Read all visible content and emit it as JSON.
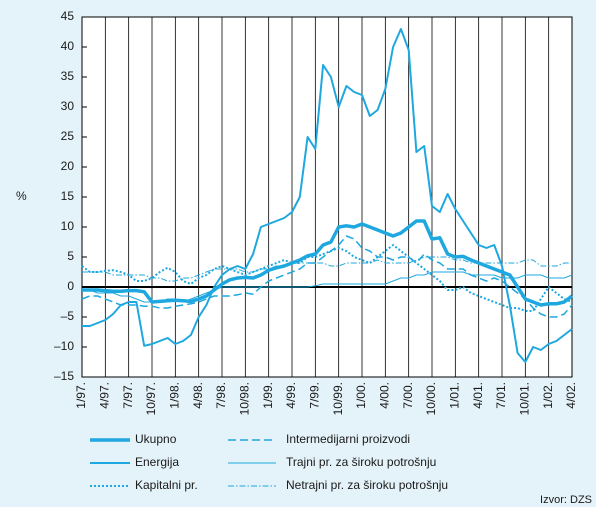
{
  "chart_data": {
    "type": "line",
    "y_label": "%",
    "source": "Izvor: DZS",
    "categories": [
      "1/97.",
      null,
      null,
      "4/97.",
      null,
      null,
      "7/97.",
      null,
      null,
      "10/97.",
      null,
      null,
      "1/98.",
      null,
      null,
      "4/98.",
      null,
      null,
      "7/98.",
      null,
      null,
      "10/98.",
      null,
      null,
      "1/99.",
      null,
      null,
      "4/99.",
      null,
      null,
      "7/99.",
      null,
      null,
      "10/99.",
      null,
      null,
      "1/00.",
      null,
      null,
      "4/00.",
      null,
      null,
      "7/00.",
      null,
      null,
      "10/00.",
      null,
      null,
      "1/01.",
      null,
      null,
      "4/01.",
      null,
      null,
      "7/01.",
      null,
      null,
      "10/01.",
      null,
      null,
      "1/02.",
      null,
      null,
      "4/02."
    ],
    "ylim": [
      -15,
      45
    ],
    "yticks": [
      {
        "value": -15,
        "label": "–15"
      },
      {
        "value": -10,
        "label": "–10"
      },
      {
        "value": -5,
        "label": "–5"
      },
      0,
      5,
      10,
      15,
      20,
      25,
      30,
      35,
      40,
      45
    ],
    "series": [
      {
        "name": "Ukupno",
        "color": "#1ea8df",
        "line_style": "solid",
        "line_width": 3.5,
        "values": [
          -0.5,
          -0.5,
          -0.5,
          -0.6,
          -0.7,
          -0.7,
          -0.6,
          -0.6,
          -0.8,
          -2.5,
          -2.4,
          -2.3,
          -2.2,
          -2.3,
          -2.4,
          -2,
          -1.5,
          -0.5,
          0.5,
          1.2,
          1.5,
          1.6,
          1.5,
          2,
          2.8,
          3.2,
          3.5,
          4,
          4.5,
          5.2,
          5.5,
          7,
          7.5,
          10,
          10.2,
          10,
          10.5,
          10,
          9.5,
          9,
          8.5,
          9,
          10,
          11,
          11,
          8,
          8.2,
          5.5,
          5,
          5.1,
          4.5,
          4,
          3.5,
          3,
          2.5,
          2,
          0,
          -2,
          -2.5,
          -3,
          -2.8,
          -2.8,
          -2.5,
          -1.5
        ]
      },
      {
        "name": "Energija",
        "color": "#1ea8df",
        "line_style": "solid",
        "line_width": 2,
        "values": [
          -6.5,
          -6.5,
          -6,
          -5.5,
          -4.5,
          -3,
          -2.5,
          -2.5,
          -9.8,
          -9.5,
          -9,
          -8.5,
          -9.5,
          -9,
          -8,
          -5,
          -3,
          0,
          2,
          3,
          3.5,
          3,
          5.5,
          10,
          10.5,
          11,
          11.5,
          12.5,
          15,
          25,
          23,
          37,
          35,
          30,
          33.5,
          32.5,
          32,
          28.5,
          29.5,
          33,
          40,
          43,
          39.5,
          22.5,
          23.5,
          13.5,
          12.5,
          15.5,
          13,
          11,
          9,
          7,
          6.5,
          7,
          3.5,
          -3,
          -11,
          -12.5,
          -10,
          -10.5,
          -9.5,
          -9,
          -8,
          -7
        ]
      },
      {
        "name": "Kapitalni pr.",
        "color": "#1ea8df",
        "line_style": "dotted",
        "line_width": 2,
        "values": [
          3.5,
          2.5,
          2.5,
          2.7,
          2.8,
          2.5,
          2,
          1,
          1,
          1.5,
          2.5,
          3.2,
          2.5,
          1,
          0.5,
          1.5,
          2,
          3,
          3.5,
          3,
          2.5,
          2,
          2.5,
          3,
          3.5,
          4,
          4.5,
          4,
          4,
          5,
          5,
          5.5,
          6,
          6.5,
          6,
          5,
          4.5,
          4,
          5,
          6,
          7,
          6,
          5,
          4,
          3,
          2,
          1,
          -0.5,
          -0.5,
          0,
          -1,
          -1.5,
          -2,
          -2.5,
          -3,
          -3.5,
          -3.5,
          -4,
          -4,
          -2,
          0,
          -1,
          -2,
          -2.5
        ]
      },
      {
        "name": "Intermedijarni proizvodi",
        "color": "#1ea8df",
        "line_style": "dashed",
        "line_width": 1.5,
        "values": [
          -2,
          -1.5,
          -1.5,
          -2,
          -2.5,
          -3,
          -3,
          -3,
          -3.2,
          -3.2,
          -3.5,
          -3.5,
          -3.2,
          -3,
          -2.8,
          -2.5,
          -2,
          -1.5,
          -1.5,
          -1.5,
          -1.3,
          -1,
          -1.2,
          0,
          1,
          1.5,
          2,
          2.5,
          3,
          4,
          4,
          5,
          6,
          7,
          8.5,
          8,
          6.5,
          6,
          5,
          5,
          4.5,
          5,
          5,
          4,
          5.5,
          4.5,
          4,
          3,
          3,
          3,
          2,
          1.5,
          1,
          1.5,
          1,
          0,
          -1,
          -2,
          -3.5,
          -4.5,
          -5,
          -5,
          -4.5,
          -3
        ]
      },
      {
        "name": "Trajni pr. za široku potrošnju",
        "color": "#1ea8df",
        "line_style": "solid",
        "line_width": 1,
        "values": [
          -0.5,
          -0.5,
          -1,
          -1,
          -1,
          -1.5,
          -1.5,
          -2,
          -2.5,
          -2.5,
          -2.5,
          -2,
          -2,
          -2.5,
          -2,
          -1.5,
          -1,
          -0.5,
          0,
          0,
          0,
          0,
          0,
          0,
          0,
          0,
          0,
          0,
          0,
          0,
          0.2,
          0.5,
          0.5,
          0.5,
          0.5,
          0.5,
          0.5,
          0.5,
          0.5,
          0.5,
          1,
          1.5,
          1.5,
          2,
          2,
          2.5,
          2.5,
          2.5,
          2.5,
          2.5,
          2,
          2,
          2,
          2,
          1.5,
          1.5,
          1.5,
          2,
          2,
          2,
          1.5,
          1.5,
          1.5,
          2
        ]
      },
      {
        "name": "Netrajni pr. za široku potrošnju",
        "color": "#1ea8df",
        "line_style": "dashdot",
        "line_width": 1,
        "values": [
          2.5,
          2.5,
          2.5,
          2.5,
          2,
          2,
          2,
          2,
          2,
          1.5,
          1.5,
          1,
          1,
          1.5,
          1.5,
          2,
          2.5,
          3,
          3,
          3,
          3,
          2.5,
          2.5,
          3,
          3,
          3.5,
          3.5,
          4,
          4,
          4,
          4,
          4,
          3.5,
          3.5,
          4,
          4,
          4,
          4,
          4.5,
          4,
          4,
          4,
          4,
          4.5,
          5,
          5,
          5,
          5,
          4.5,
          4.5,
          4,
          4,
          4,
          4,
          4,
          4,
          4,
          4.5,
          4.5,
          3.5,
          3.5,
          3.5,
          4,
          4
        ]
      }
    ]
  }
}
